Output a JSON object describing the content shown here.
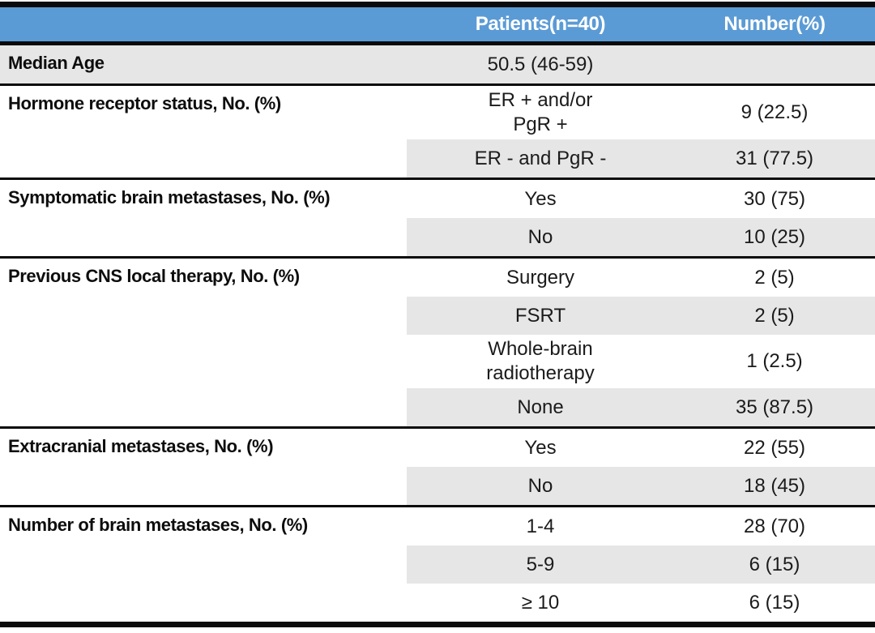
{
  "colors": {
    "header_bg": "#5B9BD5",
    "header_text": "#FFFFFF",
    "row_shade": "#E7E6E6",
    "border": "#0B0B0B"
  },
  "table": {
    "header": {
      "patients": "Patients(n=40)",
      "number": "Number(%)"
    },
    "sections": [
      {
        "label": "Median Age",
        "label_shaded": true,
        "rows": [
          {
            "patients": [
              "50.5 (46-59)"
            ],
            "number": "",
            "shaded": true
          }
        ]
      },
      {
        "label": "Hormone receptor status, No. (%)",
        "label_shaded": false,
        "rows": [
          {
            "patients": [
              "ER + and/or",
              "PgR +"
            ],
            "number": "9 (22.5)",
            "shaded": false
          },
          {
            "patients": [
              "ER - and PgR -"
            ],
            "number": "31 (77.5)",
            "shaded": true
          }
        ]
      },
      {
        "label": "Symptomatic brain metastases, No. (%)",
        "label_shaded": false,
        "rows": [
          {
            "patients": [
              "Yes"
            ],
            "number": "30 (75)",
            "shaded": false
          },
          {
            "patients": [
              "No"
            ],
            "number": "10 (25)",
            "shaded": true
          }
        ]
      },
      {
        "label": "Previous CNS local therapy, No. (%)",
        "label_shaded": false,
        "rows": [
          {
            "patients": [
              "Surgery"
            ],
            "number": "2 (5)",
            "shaded": false
          },
          {
            "patients": [
              "FSRT"
            ],
            "number": "2 (5)",
            "shaded": true
          },
          {
            "patients": [
              "Whole-brain",
              "radiotherapy"
            ],
            "number": "1 (2.5)",
            "shaded": false
          },
          {
            "patients": [
              "None"
            ],
            "number": "35 (87.5)",
            "shaded": true
          }
        ]
      },
      {
        "label": "Extracranial metastases, No. (%)",
        "label_shaded": false,
        "rows": [
          {
            "patients": [
              "Yes"
            ],
            "number": "22 (55)",
            "shaded": false
          },
          {
            "patients": [
              "No"
            ],
            "number": "18 (45)",
            "shaded": true
          }
        ]
      },
      {
        "label": "Number of brain metastases, No. (%)",
        "label_shaded": false,
        "rows": [
          {
            "patients": [
              "1-4"
            ],
            "number": "28 (70)",
            "shaded": false
          },
          {
            "patients": [
              "5-9"
            ],
            "number": "6 (15)",
            "shaded": true
          },
          {
            "patients": [
              "≥ 10"
            ],
            "number": "6 (15)",
            "shaded": false
          }
        ]
      }
    ]
  }
}
